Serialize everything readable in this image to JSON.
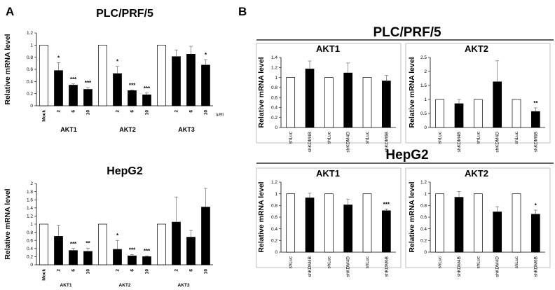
{
  "panel_labels": {
    "a": "A",
    "b": "B"
  },
  "chart_data": [
    {
      "type": "bar",
      "title": "PLC/PRF/5",
      "ylabel": "Relative mRNA level",
      "ylim": [
        0,
        1.2
      ],
      "yticks": [
        "0",
        "0.2",
        "0.4",
        "0.6",
        "0.8",
        "1",
        "1.2"
      ],
      "categories": [
        "Mock",
        "2",
        "6",
        "10",
        "",
        "2",
        "6",
        "10",
        "",
        "2",
        "6",
        "10"
      ],
      "groups": [
        "AKT1",
        "AKT2",
        "AKT3"
      ],
      "unit_label": "(μM)",
      "values": [
        1.0,
        0.58,
        0.34,
        0.27,
        1.0,
        0.53,
        0.25,
        0.18,
        1.0,
        0.81,
        0.85,
        0.67
      ],
      "errors": [
        0,
        0.13,
        0.02,
        0.03,
        0,
        0.12,
        0.01,
        0.03,
        0,
        0.11,
        0.13,
        0.09
      ],
      "filled": [
        false,
        true,
        true,
        true,
        false,
        true,
        true,
        true,
        false,
        true,
        true,
        true
      ],
      "significance": [
        "",
        "*",
        "***",
        "***",
        "",
        "*",
        "***",
        "***",
        "",
        "",
        "",
        "*"
      ]
    },
    {
      "type": "bar",
      "title": "HepG2",
      "ylabel": "Relative mRNA level",
      "ylim": [
        0,
        2
      ],
      "yticks": [
        "0",
        "0.2",
        "0.4",
        "0.6",
        "0.8",
        "1",
        "1.2",
        "1.4",
        "1.6",
        "1.8",
        "2"
      ],
      "categories": [
        "Mock",
        "2",
        "6",
        "10",
        "",
        "2",
        "6",
        "10",
        "",
        "2",
        "6",
        "10"
      ],
      "groups": [
        "AKT1",
        "AKT2",
        "AKT3"
      ],
      "values": [
        1.0,
        0.7,
        0.35,
        0.33,
        1.0,
        0.38,
        0.22,
        0.2,
        1.0,
        1.05,
        0.68,
        1.42
      ],
      "errors": [
        0,
        0.27,
        0.05,
        0.08,
        0,
        0.22,
        0.03,
        0.02,
        0,
        0.62,
        0.17,
        0.46
      ],
      "filled": [
        false,
        true,
        true,
        true,
        false,
        true,
        true,
        true,
        false,
        true,
        true,
        true
      ],
      "significance": [
        "",
        "",
        "***",
        "**",
        "",
        "*",
        "***",
        "***",
        "",
        "",
        "",
        ""
      ]
    },
    {
      "type": "bar",
      "title": "AKT1",
      "ylabel": "Relative mRNA level",
      "ylim": [
        0,
        1.4
      ],
      "yticks": [
        "0",
        "0.2",
        "0.4",
        "0.6",
        "0.8",
        "1",
        "1.2",
        "1.4"
      ],
      "categories": [
        "shLuc",
        "shKDM4B",
        "shLuc",
        "shKDM4D",
        "shLuc",
        "shKDM6B"
      ],
      "values": [
        1.0,
        1.17,
        1.0,
        1.09,
        1.0,
        0.93
      ],
      "errors": [
        0,
        0.16,
        0,
        0.2,
        0,
        0.11
      ],
      "filled": [
        false,
        true,
        false,
        true,
        false,
        true
      ],
      "significance": [
        "",
        "",
        "",
        "",
        "",
        ""
      ]
    },
    {
      "type": "bar",
      "title": "AKT2",
      "ylabel": "Relative mRNA level",
      "ylim": [
        0,
        2.5
      ],
      "yticks": [
        "0",
        "0.5",
        "1",
        "1.5",
        "2",
        "2.5"
      ],
      "categories": [
        "shLuc",
        "shKDM4B",
        "shLuc",
        "shKDM4D",
        "shLuc",
        "shKDM6B"
      ],
      "values": [
        1.0,
        0.85,
        1.0,
        1.63,
        1.0,
        0.57
      ],
      "errors": [
        0,
        0.15,
        0,
        0.75,
        0,
        0.13
      ],
      "filled": [
        false,
        true,
        false,
        true,
        false,
        true
      ],
      "significance": [
        "",
        "",
        "",
        "",
        "",
        "**"
      ]
    },
    {
      "type": "bar",
      "title": "AKT1",
      "ylabel": "Relative mRNA level",
      "ylim": [
        0,
        1.2
      ],
      "yticks": [
        "0",
        "0.2",
        "0.4",
        "0.6",
        "0.8",
        "1",
        "1.2"
      ],
      "categories": [
        "shLuc",
        "shKDM4B",
        "shLuc",
        "shKDM4D",
        "shLuc",
        "shKDM6B"
      ],
      "values": [
        1.0,
        0.93,
        1.0,
        0.81,
        1.0,
        0.71
      ],
      "errors": [
        0,
        0.08,
        0,
        0.1,
        0,
        0.03
      ],
      "filled": [
        false,
        true,
        false,
        true,
        false,
        true
      ],
      "significance": [
        "",
        "",
        "",
        "",
        "",
        "***"
      ]
    },
    {
      "type": "bar",
      "title": "AKT2",
      "ylabel": "Relative mRNA level",
      "ylim": [
        0,
        1.2
      ],
      "yticks": [
        "0",
        "0.2",
        "0.4",
        "0.6",
        "0.8",
        "1",
        "1.2"
      ],
      "categories": [
        "shLuc",
        "shKDM4B",
        "shLuc",
        "shKDM4D",
        "shLuc",
        "shKDM6B"
      ],
      "values": [
        1.0,
        0.94,
        1.0,
        0.69,
        1.0,
        0.65
      ],
      "errors": [
        0,
        0.1,
        0,
        0.09,
        0,
        0.07
      ],
      "filled": [
        false,
        true,
        false,
        true,
        false,
        true
      ],
      "significance": [
        "",
        "",
        "",
        "",
        "",
        "*"
      ]
    }
  ],
  "headers": {
    "b_top": "PLC/PRF/5",
    "b_bottom": "HepG2"
  }
}
